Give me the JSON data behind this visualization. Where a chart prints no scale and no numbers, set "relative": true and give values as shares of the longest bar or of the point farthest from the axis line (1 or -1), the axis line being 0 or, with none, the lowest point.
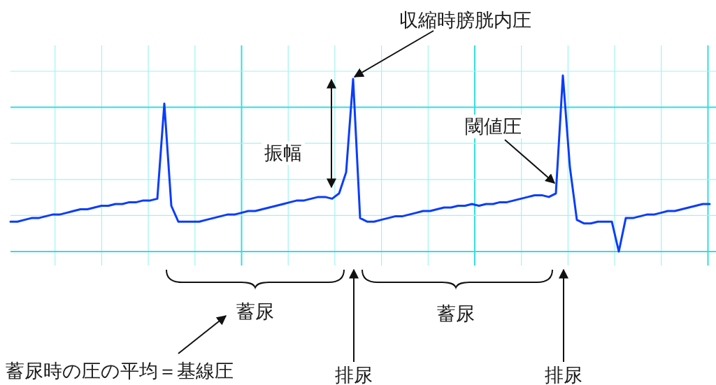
{
  "chart_data": {
    "type": "line",
    "relative": true,
    "grid": true,
    "categories": [
      null,
      null,
      null,
      null,
      null,
      null,
      null,
      null,
      null,
      null,
      null,
      null,
      null,
      null,
      null,
      null,
      null,
      null,
      null,
      null,
      null,
      null,
      null,
      null,
      null,
      null,
      null,
      null,
      null,
      null,
      null,
      null,
      null,
      null,
      null,
      null,
      null,
      null,
      null,
      null,
      null,
      null,
      null,
      null,
      null,
      null,
      null,
      null,
      null,
      null,
      null,
      null,
      null,
      null,
      null,
      null,
      null,
      null,
      null,
      null,
      null,
      null,
      null,
      null,
      null,
      null,
      null,
      null,
      null,
      null,
      null,
      null,
      null,
      null,
      null,
      null,
      null,
      null,
      null,
      null,
      null,
      null,
      null,
      null,
      null,
      null,
      null,
      null,
      null,
      null,
      null,
      null,
      null,
      null,
      null,
      null,
      null,
      null,
      null,
      null,
      null
    ],
    "series": [
      {
        "color": "#0a3cff",
        "values": [
          0.17,
          0.17,
          0.18,
          0.19,
          0.19,
          0.2,
          0.21,
          0.21,
          0.22,
          0.23,
          0.24,
          0.24,
          0.25,
          0.26,
          0.26,
          0.27,
          0.27,
          0.28,
          0.28,
          0.29,
          0.29,
          0.3,
          0.84,
          0.26,
          0.17,
          0.17,
          0.17,
          0.17,
          0.18,
          0.19,
          0.2,
          0.21,
          0.21,
          0.22,
          0.23,
          0.23,
          0.24,
          0.25,
          0.26,
          0.27,
          0.28,
          0.29,
          0.29,
          0.3,
          0.31,
          0.31,
          0.3,
          0.33,
          0.45,
          0.98,
          0.19,
          0.17,
          0.17,
          0.18,
          0.19,
          0.2,
          0.2,
          0.21,
          0.22,
          0.23,
          0.23,
          0.24,
          0.25,
          0.25,
          0.26,
          0.26,
          0.27,
          0.26,
          0.27,
          0.27,
          0.28,
          0.28,
          0.29,
          0.3,
          0.31,
          0.32,
          0.32,
          0.31,
          0.33,
          1.0,
          0.48,
          0.18,
          0.16,
          0.16,
          0.17,
          0.17,
          0.17,
          0,
          0.19,
          0.19,
          0.2,
          0.21,
          0.21,
          0.22,
          0.23,
          0.23,
          0.24,
          0.25,
          0.26,
          0.27,
          0.27
        ]
      }
    ],
    "annotations": [
      "収縮時膀胱内圧",
      "振幅",
      "閾値圧",
      "蓄尿",
      "蓄尿",
      "排尿",
      "排尿",
      "蓄尿時の圧の平均＝基線圧"
    ]
  }
}
